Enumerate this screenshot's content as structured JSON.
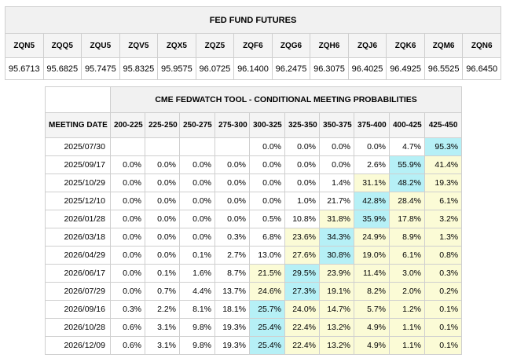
{
  "futures": {
    "title": "FED FUND FUTURES",
    "contracts": [
      "ZQN5",
      "ZQQ5",
      "ZQU5",
      "ZQV5",
      "ZQX5",
      "ZQZ5",
      "ZQF6",
      "ZQG6",
      "ZQH6",
      "ZQJ6",
      "ZQK6",
      "ZQM6",
      "ZQN6"
    ],
    "prices": [
      "95.6713",
      "95.6825",
      "95.7475",
      "95.8325",
      "95.9575",
      "96.0725",
      "96.1400",
      "96.2475",
      "96.3075",
      "96.4025",
      "96.4925",
      "96.5525",
      "96.6450"
    ]
  },
  "probabilities": {
    "title": "CME FEDWATCH TOOL - CONDITIONAL MEETING PROBABILITIES",
    "date_header": "MEETING DATE",
    "ranges": [
      "200-225",
      "225-250",
      "250-275",
      "275-300",
      "300-325",
      "325-350",
      "350-375",
      "375-400",
      "400-425",
      "425-450"
    ],
    "highlight_colors": {
      "light": "#fbfbd6",
      "max": "#b6f0f6"
    },
    "rows": [
      {
        "date": "2025/07/30",
        "values": [
          "",
          "",
          "",
          "",
          "0.0%",
          "0.0%",
          "0.0%",
          "0.0%",
          "4.7%",
          "95.3%"
        ],
        "styles": [
          "",
          "",
          "",
          "",
          "",
          "",
          "",
          "",
          "",
          "c"
        ]
      },
      {
        "date": "2025/09/17",
        "values": [
          "0.0%",
          "0.0%",
          "0.0%",
          "0.0%",
          "0.0%",
          "0.0%",
          "0.0%",
          "2.6%",
          "55.9%",
          "41.4%"
        ],
        "styles": [
          "",
          "",
          "",
          "",
          "",
          "",
          "",
          "",
          "c",
          "y"
        ]
      },
      {
        "date": "2025/10/29",
        "values": [
          "0.0%",
          "0.0%",
          "0.0%",
          "0.0%",
          "0.0%",
          "0.0%",
          "1.4%",
          "31.1%",
          "48.2%",
          "19.3%"
        ],
        "styles": [
          "",
          "",
          "",
          "",
          "",
          "",
          "",
          "y",
          "c",
          "y"
        ]
      },
      {
        "date": "2025/12/10",
        "values": [
          "0.0%",
          "0.0%",
          "0.0%",
          "0.0%",
          "0.0%",
          "1.0%",
          "21.7%",
          "42.8%",
          "28.4%",
          "6.1%"
        ],
        "styles": [
          "",
          "",
          "",
          "",
          "",
          "",
          "",
          "c",
          "y",
          "y"
        ]
      },
      {
        "date": "2026/01/28",
        "values": [
          "0.0%",
          "0.0%",
          "0.0%",
          "0.0%",
          "0.5%",
          "10.8%",
          "31.8%",
          "35.9%",
          "17.8%",
          "3.2%"
        ],
        "styles": [
          "",
          "",
          "",
          "",
          "",
          "",
          "y",
          "c",
          "y",
          "y"
        ]
      },
      {
        "date": "2026/03/18",
        "values": [
          "0.0%",
          "0.0%",
          "0.0%",
          "0.3%",
          "6.8%",
          "23.6%",
          "34.3%",
          "24.9%",
          "8.9%",
          "1.3%"
        ],
        "styles": [
          "",
          "",
          "",
          "",
          "",
          "y",
          "c",
          "y",
          "y",
          "y"
        ]
      },
      {
        "date": "2026/04/29",
        "values": [
          "0.0%",
          "0.0%",
          "0.1%",
          "2.7%",
          "13.0%",
          "27.6%",
          "30.8%",
          "19.0%",
          "6.1%",
          "0.8%"
        ],
        "styles": [
          "",
          "",
          "",
          "",
          "",
          "y",
          "c",
          "y",
          "y",
          "y"
        ]
      },
      {
        "date": "2026/06/17",
        "values": [
          "0.0%",
          "0.1%",
          "1.6%",
          "8.7%",
          "21.5%",
          "29.5%",
          "23.9%",
          "11.4%",
          "3.0%",
          "0.3%"
        ],
        "styles": [
          "",
          "",
          "",
          "",
          "y",
          "c",
          "y",
          "y",
          "y",
          "y"
        ]
      },
      {
        "date": "2026/07/29",
        "values": [
          "0.0%",
          "0.7%",
          "4.4%",
          "13.7%",
          "24.6%",
          "27.3%",
          "19.1%",
          "8.2%",
          "2.0%",
          "0.2%"
        ],
        "styles": [
          "",
          "",
          "",
          "",
          "y",
          "c",
          "y",
          "y",
          "y",
          "y"
        ]
      },
      {
        "date": "2026/09/16",
        "values": [
          "0.3%",
          "2.2%",
          "8.1%",
          "18.1%",
          "25.7%",
          "24.0%",
          "14.7%",
          "5.7%",
          "1.2%",
          "0.1%"
        ],
        "styles": [
          "",
          "",
          "",
          "",
          "c",
          "y",
          "y",
          "y",
          "y",
          "y"
        ]
      },
      {
        "date": "2026/10/28",
        "values": [
          "0.6%",
          "3.1%",
          "9.8%",
          "19.3%",
          "25.4%",
          "22.4%",
          "13.2%",
          "4.9%",
          "1.1%",
          "0.1%"
        ],
        "styles": [
          "",
          "",
          "",
          "",
          "c",
          "y",
          "y",
          "y",
          "y",
          "y"
        ]
      },
      {
        "date": "2026/12/09",
        "values": [
          "0.6%",
          "3.1%",
          "9.8%",
          "19.3%",
          "25.4%",
          "22.4%",
          "13.2%",
          "4.9%",
          "1.1%",
          "0.1%"
        ],
        "styles": [
          "",
          "",
          "",
          "",
          "c",
          "y",
          "y",
          "y",
          "y",
          "y"
        ]
      }
    ]
  }
}
